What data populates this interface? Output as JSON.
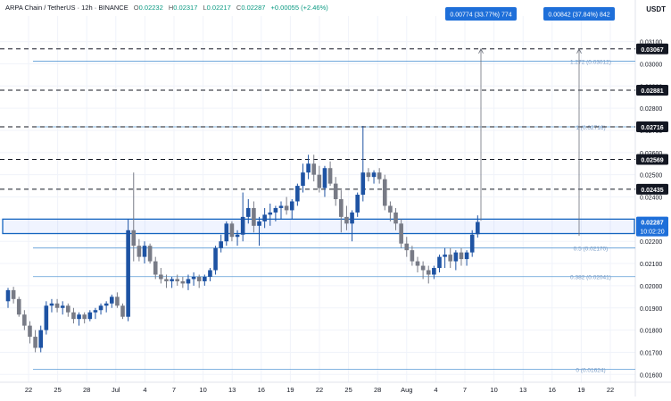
{
  "header": {
    "symbol": "ARPA Chain / TetherUS · 12h · BINANCE",
    "o_label": "O",
    "o_value": "0.02232",
    "h_label": "H",
    "h_value": "0.02317",
    "l_label": "L",
    "l_value": "0.02217",
    "c_label": "C",
    "c_value": "0.02287",
    "change": "+0.00055 (+2.46%)"
  },
  "currency": "USDT",
  "colors": {
    "up": "#2962ff",
    "up_fill": "#1e53a3",
    "down": "#9e9e9e",
    "down_fill": "#787b86",
    "fib": "#5b9bd5",
    "dashed": "#131722",
    "box": "#1565c0",
    "label_bg": "#131722",
    "label_blue": "#1e6fd9"
  },
  "chart_data": {
    "type": "candlestick",
    "ylim": [
      0.01565,
      0.03215
    ],
    "y_ticks": [
      "0.03100",
      "0.03000",
      "0.02900",
      "0.02800",
      "0.02700",
      "0.02600",
      "0.02500",
      "0.02400",
      "0.02300",
      "0.02200",
      "0.02100",
      "0.02000",
      "0.01900",
      "0.01800",
      "0.01700",
      "0.01600"
    ],
    "x_ticks": [
      "22",
      "25",
      "28",
      "Jul",
      "4",
      "7",
      "10",
      "13",
      "16",
      "19",
      "22",
      "25",
      "28",
      "Aug",
      "4",
      "7",
      "10",
      "13",
      "16",
      "19",
      "22"
    ],
    "candles": [
      [
        0.0193,
        0.0199,
        0.019,
        0.0198
      ],
      [
        0.0198,
        0.01995,
        0.0192,
        0.0194
      ],
      [
        0.0194,
        0.0195,
        0.0186,
        0.0187
      ],
      [
        0.0187,
        0.0189,
        0.018,
        0.0182
      ],
      [
        0.0182,
        0.0184,
        0.0174,
        0.0177
      ],
      [
        0.0177,
        0.018,
        0.017,
        0.0172
      ],
      [
        0.0172,
        0.0182,
        0.017,
        0.018
      ],
      [
        0.018,
        0.0193,
        0.0178,
        0.0191
      ],
      [
        0.0191,
        0.0194,
        0.0188,
        0.0192
      ],
      [
        0.0192,
        0.0194,
        0.0188,
        0.019
      ],
      [
        0.019,
        0.0193,
        0.0187,
        0.0191
      ],
      [
        0.0191,
        0.0192,
        0.0186,
        0.0188
      ],
      [
        0.0188,
        0.019,
        0.0183,
        0.0185
      ],
      [
        0.0185,
        0.0188,
        0.0182,
        0.0187
      ],
      [
        0.0187,
        0.0188,
        0.0183,
        0.0185
      ],
      [
        0.0185,
        0.0189,
        0.0184,
        0.0188
      ],
      [
        0.0188,
        0.019,
        0.0185,
        0.0189
      ],
      [
        0.0189,
        0.0192,
        0.0187,
        0.0191
      ],
      [
        0.0191,
        0.0193,
        0.0188,
        0.0192
      ],
      [
        0.0192,
        0.0196,
        0.019,
        0.0195
      ],
      [
        0.0195,
        0.0197,
        0.019,
        0.0191
      ],
      [
        0.0191,
        0.0192,
        0.0185,
        0.0186
      ],
      [
        0.0186,
        0.023,
        0.0184,
        0.0225
      ],
      [
        0.0225,
        0.0251,
        0.0211,
        0.0218
      ],
      [
        0.0218,
        0.0221,
        0.0211,
        0.0213
      ],
      [
        0.0213,
        0.022,
        0.021,
        0.0218
      ],
      [
        0.0218,
        0.0219,
        0.021,
        0.0211
      ],
      [
        0.0211,
        0.0213,
        0.0203,
        0.0205
      ],
      [
        0.0205,
        0.0208,
        0.0201,
        0.0203
      ],
      [
        0.0203,
        0.0205,
        0.0199,
        0.0202
      ],
      [
        0.0202,
        0.0204,
        0.0199,
        0.0203
      ],
      [
        0.0203,
        0.0205,
        0.02,
        0.0202
      ],
      [
        0.0202,
        0.0204,
        0.0199,
        0.0201
      ],
      [
        0.0201,
        0.0205,
        0.0198,
        0.0203
      ],
      [
        0.0203,
        0.0206,
        0.02,
        0.0204
      ],
      [
        0.0204,
        0.0205,
        0.0199,
        0.0202
      ],
      [
        0.0202,
        0.0205,
        0.02,
        0.0204
      ],
      [
        0.0204,
        0.0208,
        0.0202,
        0.0207
      ],
      [
        0.0207,
        0.0218,
        0.0205,
        0.0217
      ],
      [
        0.0217,
        0.0223,
        0.0215,
        0.022
      ],
      [
        0.022,
        0.0229,
        0.0218,
        0.0228
      ],
      [
        0.0228,
        0.0229,
        0.022,
        0.0222
      ],
      [
        0.0222,
        0.0225,
        0.0218,
        0.0223
      ],
      [
        0.0223,
        0.0242,
        0.022,
        0.0231
      ],
      [
        0.0231,
        0.0239,
        0.0228,
        0.0235
      ],
      [
        0.0235,
        0.0238,
        0.0224,
        0.0227
      ],
      [
        0.0227,
        0.0231,
        0.0218,
        0.0229
      ],
      [
        0.0229,
        0.0235,
        0.0226,
        0.0232
      ],
      [
        0.0232,
        0.0237,
        0.0227,
        0.0233
      ],
      [
        0.0233,
        0.0236,
        0.0229,
        0.0235
      ],
      [
        0.0235,
        0.0238,
        0.023,
        0.0236
      ],
      [
        0.0236,
        0.024,
        0.0232,
        0.0234
      ],
      [
        0.0234,
        0.0239,
        0.023,
        0.0238
      ],
      [
        0.0238,
        0.0246,
        0.0236,
        0.0245
      ],
      [
        0.0245,
        0.0255,
        0.0242,
        0.0251
      ],
      [
        0.0251,
        0.0259,
        0.0248,
        0.0255
      ],
      [
        0.0255,
        0.0259,
        0.0247,
        0.025
      ],
      [
        0.025,
        0.0254,
        0.0242,
        0.0244
      ],
      [
        0.0244,
        0.0254,
        0.024,
        0.0253
      ],
      [
        0.0253,
        0.0256,
        0.0245,
        0.0246
      ],
      [
        0.0246,
        0.0249,
        0.0236,
        0.0239
      ],
      [
        0.0239,
        0.0243,
        0.0224,
        0.0231
      ],
      [
        0.0231,
        0.0236,
        0.0225,
        0.0228
      ],
      [
        0.0228,
        0.0234,
        0.022,
        0.0233
      ],
      [
        0.0233,
        0.0242,
        0.0231,
        0.0241
      ],
      [
        0.0241,
        0.0272,
        0.0238,
        0.0251
      ],
      [
        0.0251,
        0.0253,
        0.0247,
        0.0249
      ],
      [
        0.0249,
        0.0252,
        0.0246,
        0.0251
      ],
      [
        0.0251,
        0.0253,
        0.0246,
        0.0248
      ],
      [
        0.0248,
        0.025,
        0.0234,
        0.0236
      ],
      [
        0.0236,
        0.0238,
        0.0229,
        0.0233
      ],
      [
        0.0233,
        0.0235,
        0.0225,
        0.0228
      ],
      [
        0.0228,
        0.023,
        0.0217,
        0.0219
      ],
      [
        0.0219,
        0.0222,
        0.0213,
        0.0216
      ],
      [
        0.0216,
        0.0218,
        0.0209,
        0.0211
      ],
      [
        0.0211,
        0.0213,
        0.0206,
        0.0209
      ],
      [
        0.0209,
        0.0211,
        0.0203,
        0.0207
      ],
      [
        0.0207,
        0.0209,
        0.0201,
        0.0205
      ],
      [
        0.0205,
        0.0209,
        0.0203,
        0.0208
      ],
      [
        0.0208,
        0.0214,
        0.0206,
        0.0213
      ],
      [
        0.0213,
        0.0217,
        0.0208,
        0.0214
      ],
      [
        0.0214,
        0.0217,
        0.0208,
        0.0211
      ],
      [
        0.0211,
        0.0216,
        0.0207,
        0.0215
      ],
      [
        0.0215,
        0.0217,
        0.0209,
        0.0212
      ],
      [
        0.0212,
        0.0216,
        0.0209,
        0.0215
      ],
      [
        0.0215,
        0.0225,
        0.0213,
        0.0223
      ],
      [
        0.02232,
        0.02317,
        0.02217,
        0.02287
      ]
    ],
    "horizontal_levels": [
      {
        "price": 0.03067,
        "label": "0.03067"
      },
      {
        "price": 0.02881,
        "label": "0.02881"
      },
      {
        "price": 0.02716,
        "label": "0.02716"
      },
      {
        "price": 0.02569,
        "label": "0.02569"
      },
      {
        "price": 0.02435,
        "label": "0.02435"
      }
    ],
    "fib_levels": [
      {
        "price": 0.03012,
        "label": "1.272 (0.03012)"
      },
      {
        "price": 0.02716,
        "label": "1 (0.02716)"
      },
      {
        "price": 0.0217,
        "label": "0.5 (0.02170)"
      },
      {
        "price": 0.02041,
        "label": "0.382 (0.02041)"
      },
      {
        "price": 0.01624,
        "label": "0 (0.01624)"
      }
    ],
    "current_price": {
      "price": 0.02287,
      "label": "0.02287",
      "countdown": "10:02:20"
    },
    "zone": {
      "top": 0.023,
      "bottom": 0.02235
    },
    "measures": [
      {
        "label": "0.00774 (33.77%) 774",
        "from": 0.02293,
        "to": 0.03067
      },
      {
        "label": "0.00842 (37.84%) 842",
        "from": 0.02225,
        "to": 0.03067
      }
    ]
  }
}
